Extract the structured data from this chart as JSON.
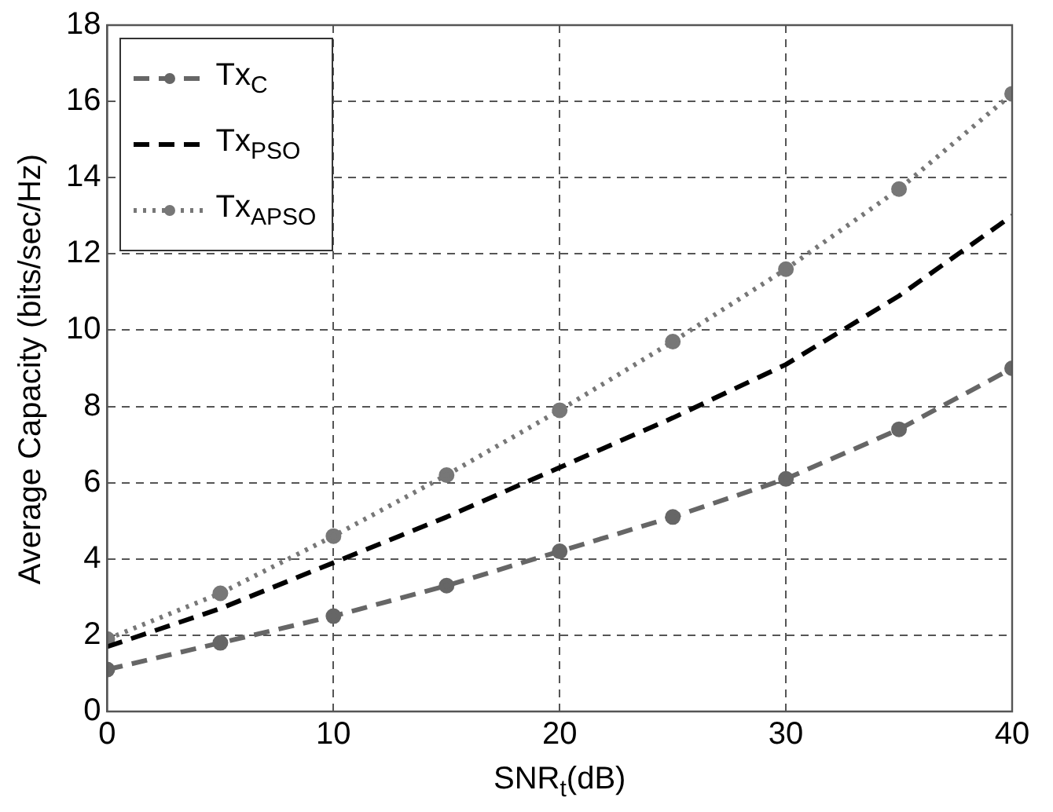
{
  "chart_data": {
    "type": "line",
    "xlabel": "SNR$_{t}$(dB)",
    "ylabel": "Average Capacity (bits/sec/Hz)",
    "x": [
      0,
      5,
      10,
      15,
      20,
      25,
      30,
      35,
      40
    ],
    "series": [
      {
        "name": "Tx$_{C}$",
        "color": "#666666",
        "marker": "circle",
        "line_style": "dashed",
        "values": [
          1.1,
          1.8,
          2.5,
          3.3,
          4.2,
          5.1,
          6.1,
          7.4,
          9.0
        ]
      },
      {
        "name": "Tx$_{PSO}$",
        "color": "#000000",
        "marker": "none",
        "line_style": "dashed",
        "values": [
          1.7,
          2.7,
          3.9,
          5.1,
          6.4,
          7.7,
          9.1,
          10.9,
          13.0
        ]
      },
      {
        "name": "Tx$_{APSO}$",
        "color": "#777777",
        "marker": "circle",
        "line_style": "dotted",
        "values": [
          1.9,
          3.1,
          4.6,
          6.2,
          7.9,
          9.7,
          11.6,
          13.7,
          16.2
        ]
      }
    ],
    "xlim": [
      0,
      40
    ],
    "xticks": [
      0,
      10,
      20,
      30,
      40
    ],
    "ylim": [
      0,
      18
    ],
    "yticks": [
      0,
      2,
      4,
      6,
      8,
      10,
      12,
      14,
      16,
      18
    ],
    "grid": true,
    "legend": "top left"
  }
}
